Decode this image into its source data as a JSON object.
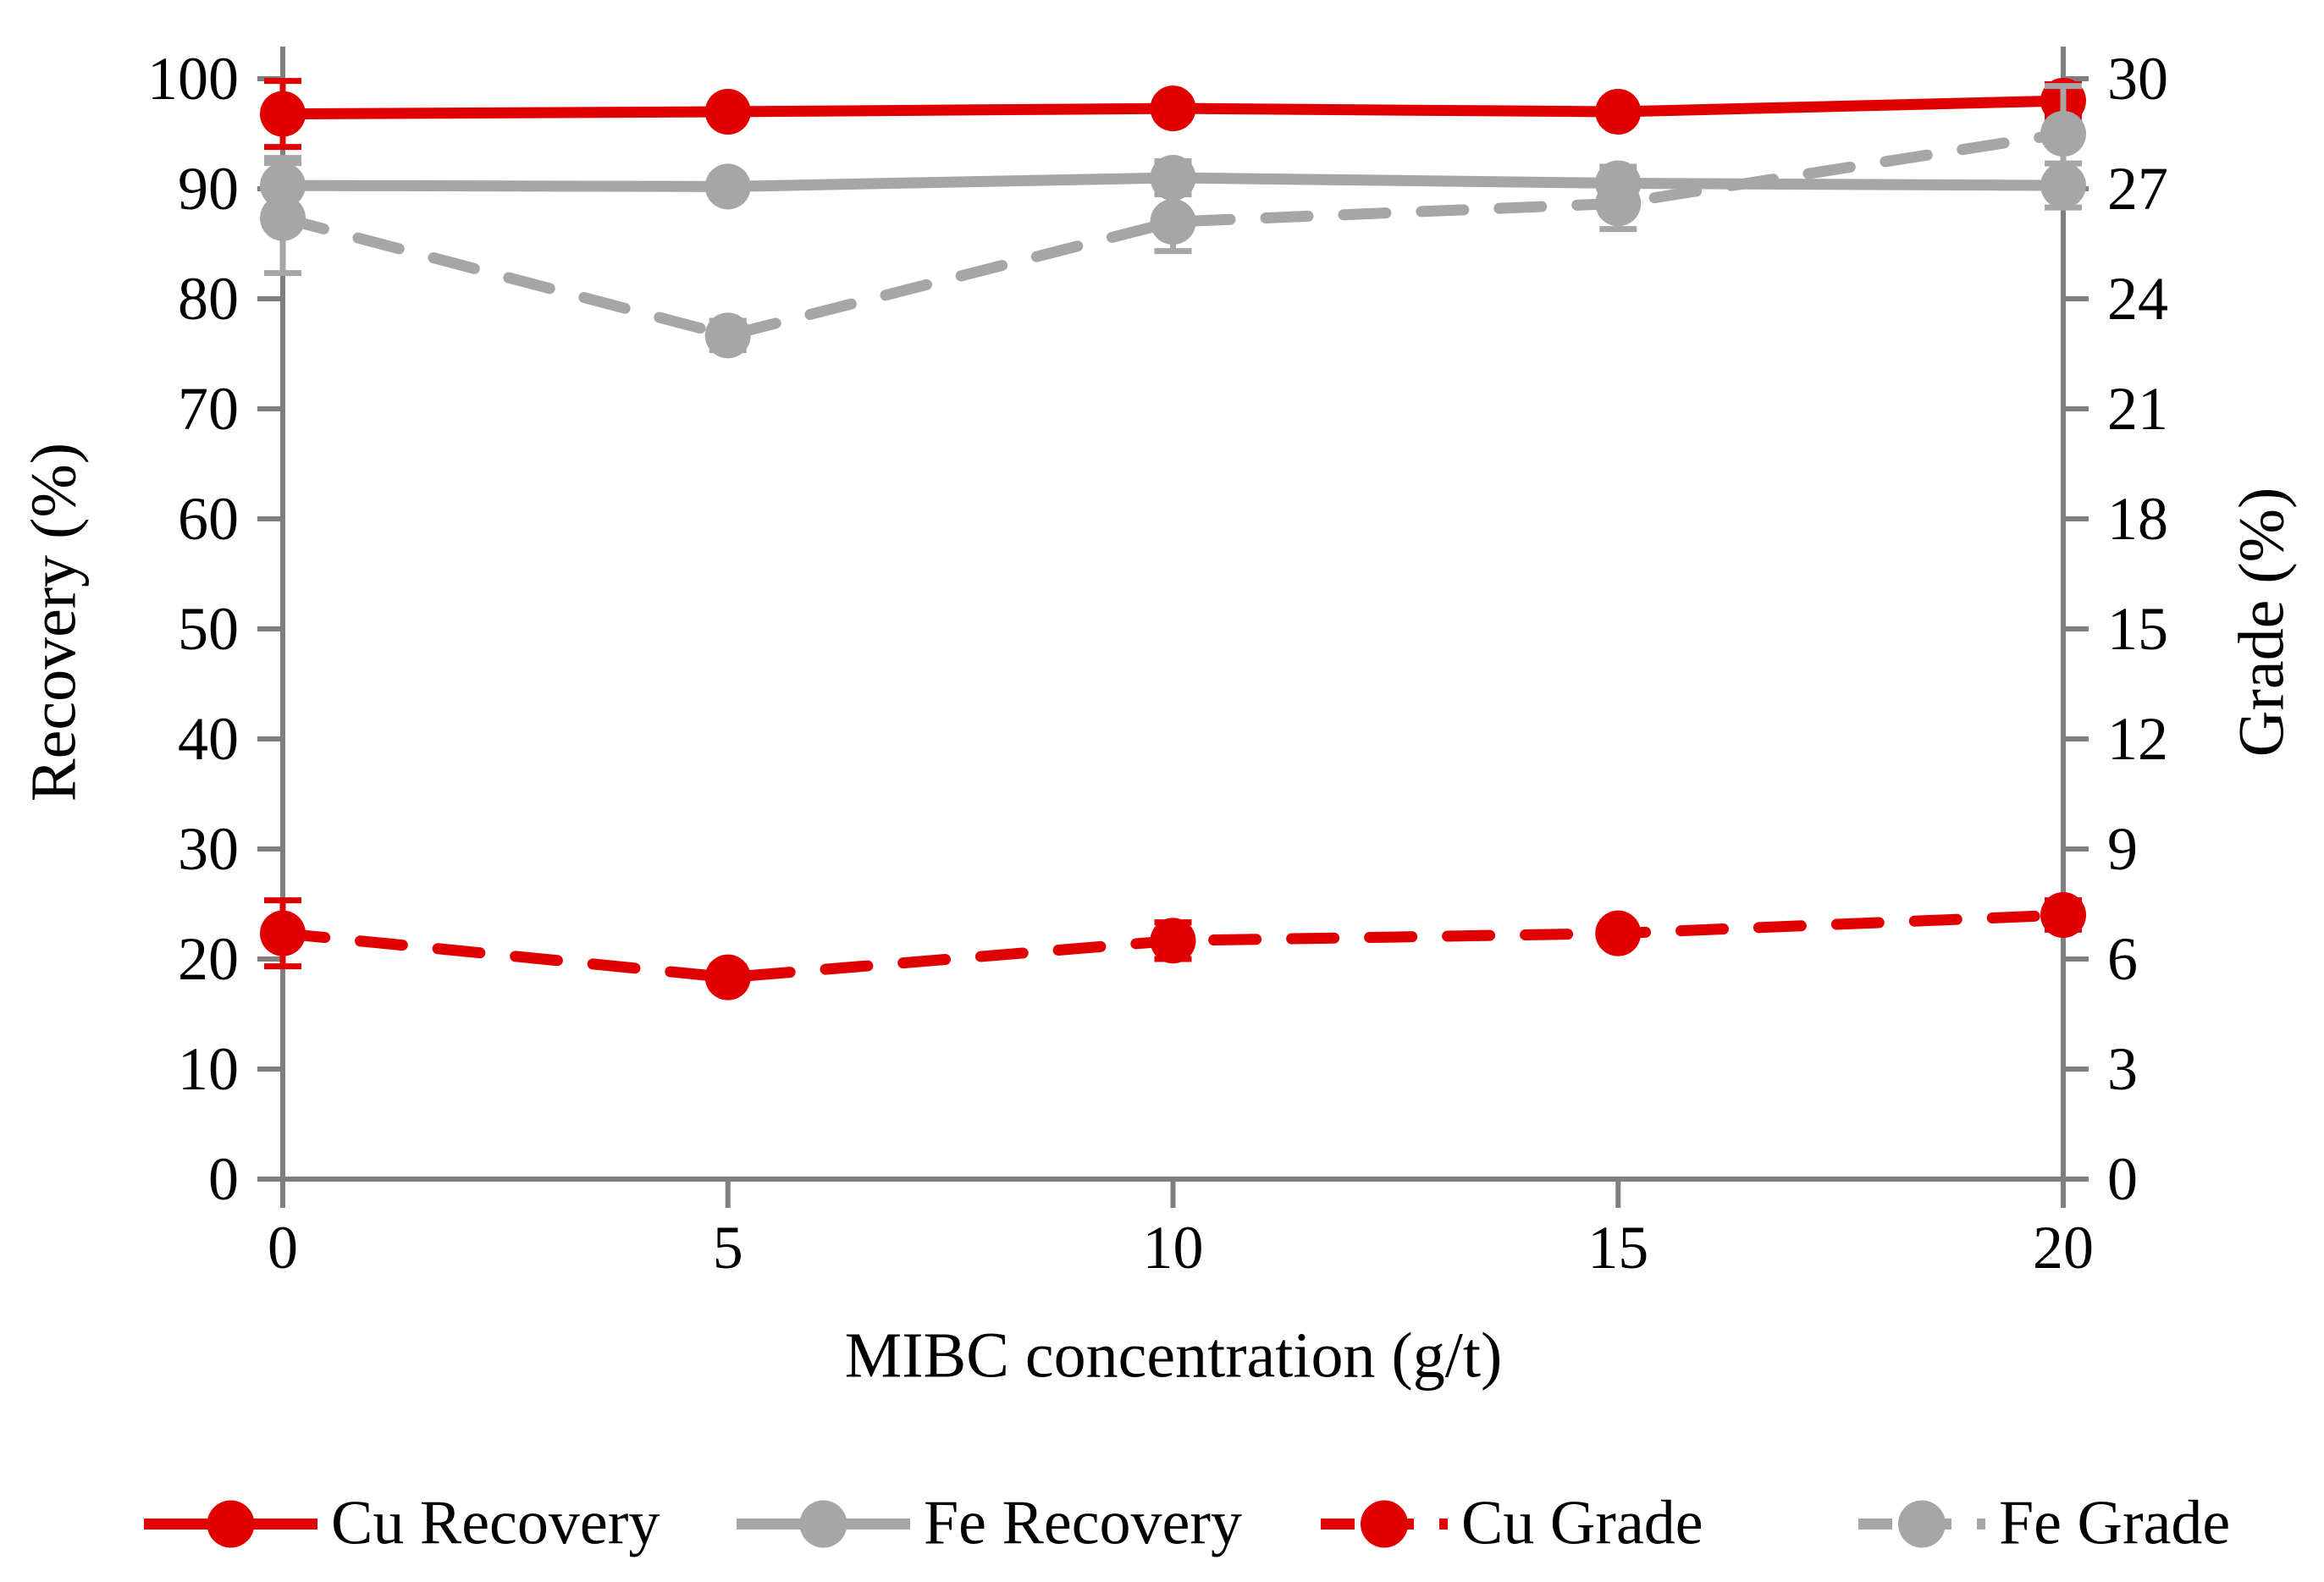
{
  "figure": {
    "background": "#ffffff",
    "axis_color": "#7f7f7f",
    "text_color": "#000000"
  },
  "chart_data": {
    "type": "line",
    "x": [
      0,
      5,
      10,
      15,
      20
    ],
    "x_tick_labels": [
      "0",
      "5",
      "10",
      "15",
      "20"
    ],
    "xlabel": "MIBC concentration (g/t)",
    "left_axis": {
      "label": "Recovery (%)",
      "min": 0,
      "max": 100,
      "tick_step": 10
    },
    "right_axis": {
      "label": "Grade (%)",
      "min": 0,
      "max": 30,
      "tick_step": 3
    },
    "grid": false,
    "legend_position": "bottom",
    "series": [
      {
        "name": "Cu Recovery",
        "axis": "left",
        "line_style": "solid",
        "color": "#e00000",
        "values": [
          96.8,
          97.0,
          97.3,
          97.0,
          98.0
        ],
        "error": [
          3.0,
          1.0,
          1.0,
          1.0,
          1.5
        ]
      },
      {
        "name": "Fe Recovery",
        "axis": "left",
        "line_style": "solid",
        "color": "#a6a6a6",
        "values": [
          90.3,
          90.2,
          91.0,
          90.5,
          90.3
        ],
        "error": [
          2.5,
          1.0,
          1.5,
          1.5,
          2.0
        ]
      },
      {
        "name": "Cu Grade",
        "axis": "right",
        "line_style": "dashed",
        "color": "#e00000",
        "values": [
          6.7,
          5.5,
          6.5,
          6.7,
          7.2
        ],
        "error": [
          0.9,
          0.3,
          0.5,
          0.3,
          0.4
        ]
      },
      {
        "name": "Fe Grade",
        "axis": "right",
        "line_style": "dashed",
        "color": "#a6a6a6",
        "values": [
          26.2,
          23.0,
          26.1,
          26.6,
          28.5
        ],
        "error": [
          1.5,
          0.4,
          0.8,
          0.7,
          1.3
        ]
      }
    ]
  }
}
